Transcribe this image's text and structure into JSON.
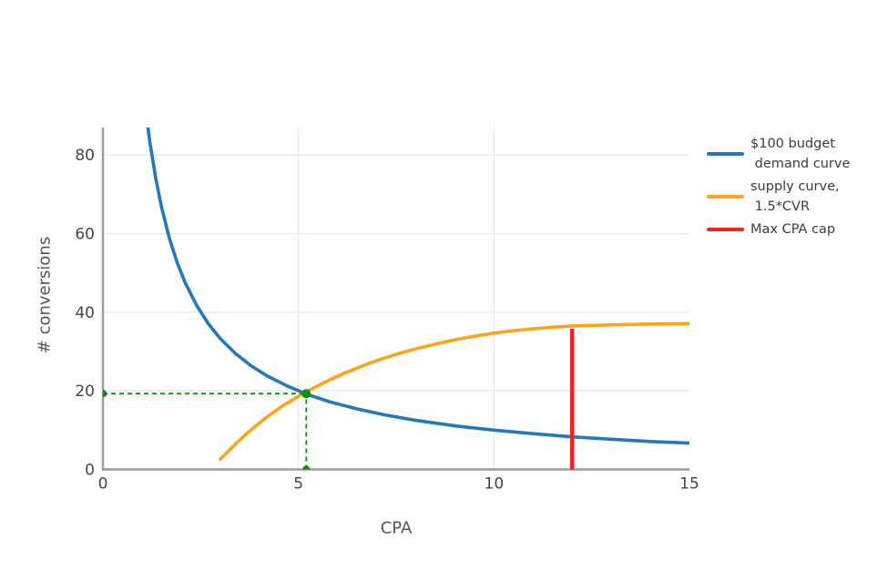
{
  "chart_data": {
    "type": "line",
    "title": "",
    "xlabel": "CPA",
    "ylabel": "# conversions",
    "xlim": [
      0,
      15
    ],
    "ylim": [
      0,
      87
    ],
    "xticks": [
      0,
      5,
      10,
      15
    ],
    "yticks": [
      0,
      20,
      40,
      60,
      80
    ],
    "grid": true,
    "legend_position": "right-outside",
    "colors": {
      "demand": "#2579ba",
      "supply": "#ffa319",
      "cap": "#f22020",
      "intersection": "#148c14",
      "axis": "#9b9b9b",
      "gridline": "#e8e8e8",
      "tick_text": "#444444"
    },
    "series": [
      {
        "id": "demand-curve",
        "name": "$100 budget\n demand curve",
        "kind": "curve",
        "color": "#2579ba",
        "x": [
          1.1,
          1.2,
          1.35,
          1.5,
          1.7,
          1.9,
          2.1,
          2.4,
          2.7,
          3.0,
          3.4,
          3.8,
          4.2,
          4.7,
          5.2,
          5.8,
          6.5,
          7.2,
          8.0,
          9.0,
          10.0,
          11.0,
          12.0,
          13.0,
          14.0,
          15.0
        ],
        "y": [
          90.9,
          83.3,
          74.1,
          66.7,
          58.8,
          52.6,
          47.6,
          41.7,
          37.0,
          33.3,
          29.4,
          26.3,
          23.8,
          21.3,
          19.2,
          17.2,
          15.4,
          13.9,
          12.5,
          11.1,
          10.0,
          9.1,
          8.3,
          7.7,
          7.1,
          6.7
        ]
      },
      {
        "id": "supply-curve",
        "name": "supply curve,\n 1.5*CVR",
        "kind": "curve",
        "color": "#ffa319",
        "x": [
          3.0,
          3.4,
          3.8,
          4.2,
          4.6,
          5.0,
          5.4,
          5.8,
          6.2,
          6.6,
          7.0,
          7.5,
          8.0,
          8.5,
          9.0,
          9.5,
          10.0,
          10.5,
          11.0,
          11.5,
          12.0,
          13.0,
          14.0,
          15.0
        ],
        "y": [
          2.6,
          6.6,
          10.2,
          13.4,
          16.2,
          18.6,
          20.8,
          22.8,
          24.6,
          26.2,
          27.7,
          29.3,
          30.7,
          31.9,
          33.0,
          33.9,
          34.7,
          35.3,
          35.8,
          36.2,
          36.5,
          36.8,
          37.0,
          37.1
        ]
      },
      {
        "id": "max-cpa-cap-line",
        "name": "Max CPA cap",
        "kind": "vline",
        "color": "#f22020",
        "x": [
          12,
          12
        ],
        "y": [
          0,
          35.8
        ]
      }
    ],
    "intersection": {
      "x": 5.2,
      "y": 19.3,
      "color": "#148c14",
      "guide_lines": [
        {
          "x": [
            0,
            5.2
          ],
          "y": [
            19.3,
            19.3
          ]
        },
        {
          "x": [
            5.2,
            5.2
          ],
          "y": [
            0,
            19.3
          ]
        }
      ],
      "markers": [
        {
          "x": 0,
          "y": 19.3
        },
        {
          "x": 5.2,
          "y": 19.3
        },
        {
          "x": 5.2,
          "y": 0
        }
      ]
    }
  }
}
